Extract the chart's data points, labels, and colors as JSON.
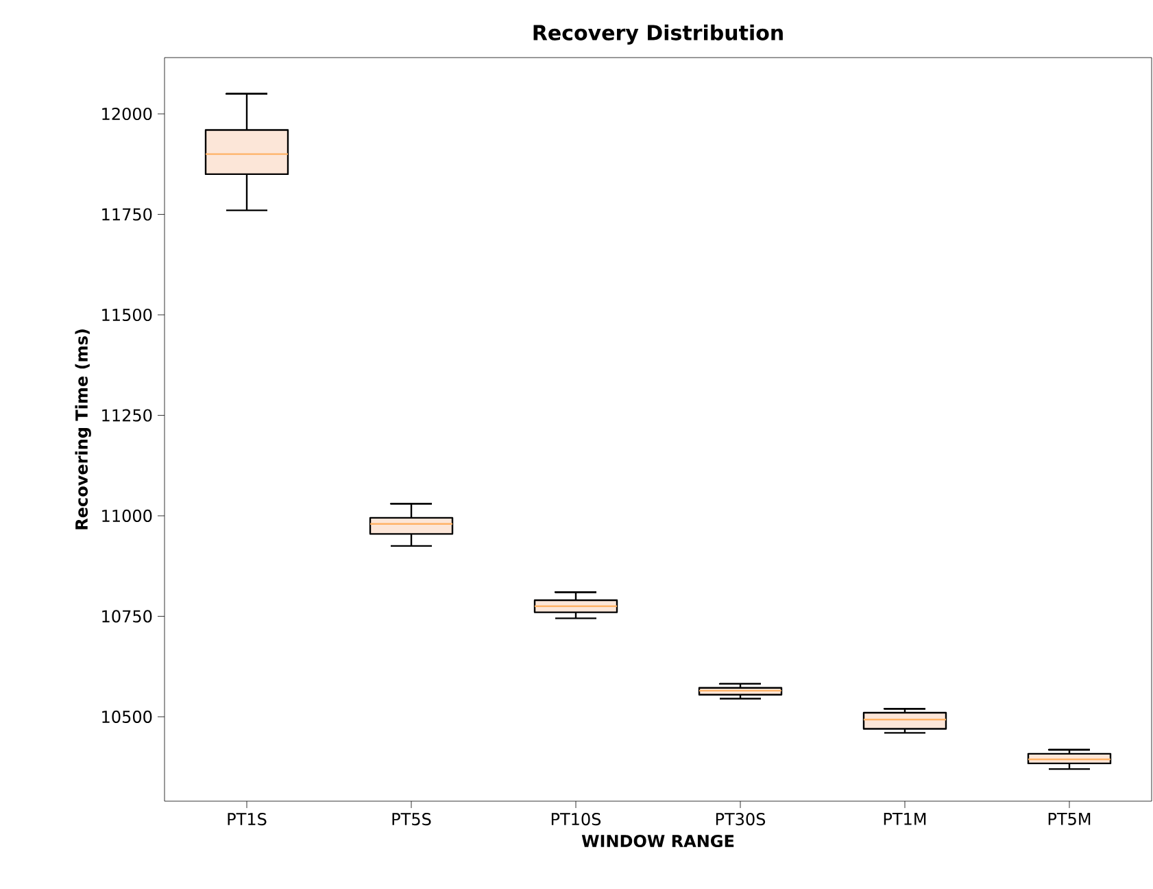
{
  "chart_data": {
    "type": "box",
    "title": "Recovery Distribution",
    "xlabel": "WINDOW RANGE",
    "ylabel": "Recovering Time (ms)",
    "categories": [
      "PT1S",
      "PT5S",
      "PT10S",
      "PT30S",
      "PT1M",
      "PT5M"
    ],
    "boxes": [
      {
        "low": 11760,
        "q1": 11850,
        "median": 11900,
        "q3": 11960,
        "high": 12050
      },
      {
        "low": 10925,
        "q1": 10955,
        "median": 10980,
        "q3": 10995,
        "high": 11030
      },
      {
        "low": 10745,
        "q1": 10760,
        "median": 10775,
        "q3": 10790,
        "high": 10810
      },
      {
        "low": 10545,
        "q1": 10555,
        "median": 10565,
        "q3": 10572,
        "high": 10582
      },
      {
        "low": 10460,
        "q1": 10470,
        "median": 10493,
        "q3": 10510,
        "high": 10520
      },
      {
        "low": 10370,
        "q1": 10384,
        "median": 10394,
        "q3": 10408,
        "high": 10418
      }
    ],
    "color": "#fce6d8",
    "ylim": [
      10290,
      12140
    ],
    "yticks": [
      10500,
      10750,
      11000,
      11250,
      11500,
      11750,
      12000
    ],
    "grid": false
  }
}
